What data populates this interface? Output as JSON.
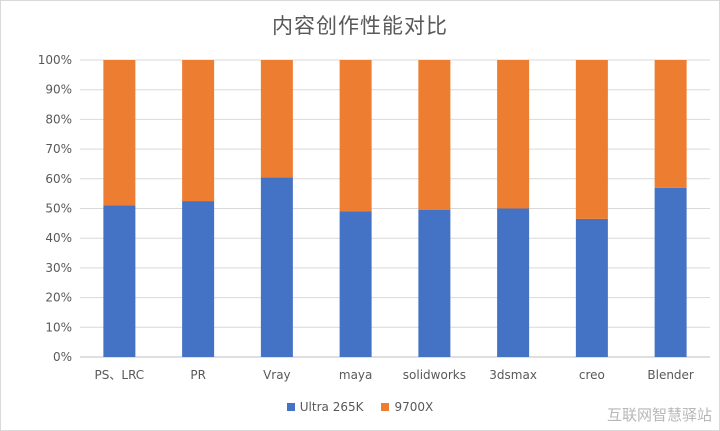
{
  "chart_data": {
    "type": "bar",
    "stacking": "percent",
    "title": "内容创作性能对比",
    "categories": [
      "PS、LRC",
      "PR",
      "Vray",
      "maya",
      "solidworks",
      "3dsmax",
      "creo",
      "Blender"
    ],
    "series": [
      {
        "name": "Ultra 265K",
        "color": "#4472c4",
        "values": [
          51,
          52.5,
          60.5,
          49,
          49.5,
          50,
          46.5,
          57
        ]
      },
      {
        "name": "9700X",
        "color": "#ed7d31",
        "values": [
          49,
          47.5,
          39.5,
          51,
          50.5,
          50,
          53.5,
          43
        ]
      }
    ],
    "y_ticks": [
      "0%",
      "10%",
      "20%",
      "30%",
      "40%",
      "50%",
      "60%",
      "70%",
      "80%",
      "90%",
      "100%"
    ],
    "ylim": [
      0,
      100
    ],
    "grid": true,
    "legend_position": "bottom"
  },
  "watermark": "互联网智慧驿站"
}
